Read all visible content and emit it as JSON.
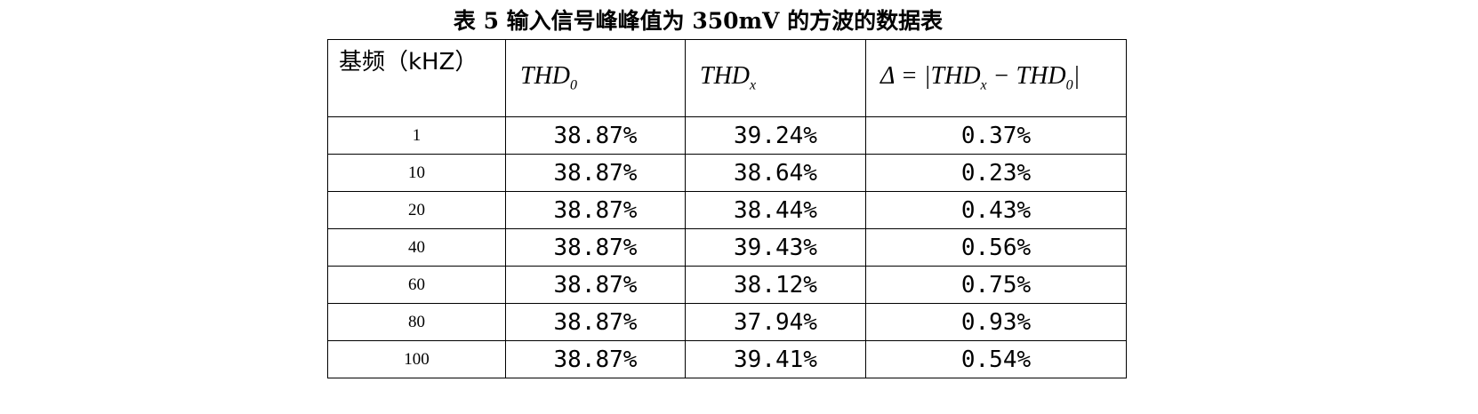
{
  "title": "表 5 输入信号峰峰值为 350mV 的方波的数据表",
  "table": {
    "header": [
      [
        {
          "text": "基频（kHZ）"
        }
      ],
      [
        {
          "text": "THD"
        },
        {
          "sub": "0"
        }
      ],
      [
        {
          "text": "THD"
        },
        {
          "sub": "x"
        }
      ],
      [
        {
          "text": "Δ = |THD"
        },
        {
          "sub": "x"
        },
        {
          "text": " − THD"
        },
        {
          "sub": "0"
        },
        {
          "text": "|"
        }
      ]
    ],
    "rows": [
      [
        "1",
        "38.87%",
        "39.24%",
        "0.37%"
      ],
      [
        "10",
        "38.87%",
        "38.64%",
        "0.23%"
      ],
      [
        "20",
        "38.87%",
        "38.44%",
        "0.43%"
      ],
      [
        "40",
        "38.87%",
        "39.43%",
        "0.56%"
      ],
      [
        "60",
        "38.87%",
        "38.12%",
        "0.75%"
      ],
      [
        "80",
        "38.87%",
        "37.94%",
        "0.93%"
      ],
      [
        "100",
        "38.87%",
        "39.41%",
        "0.54%"
      ]
    ]
  }
}
